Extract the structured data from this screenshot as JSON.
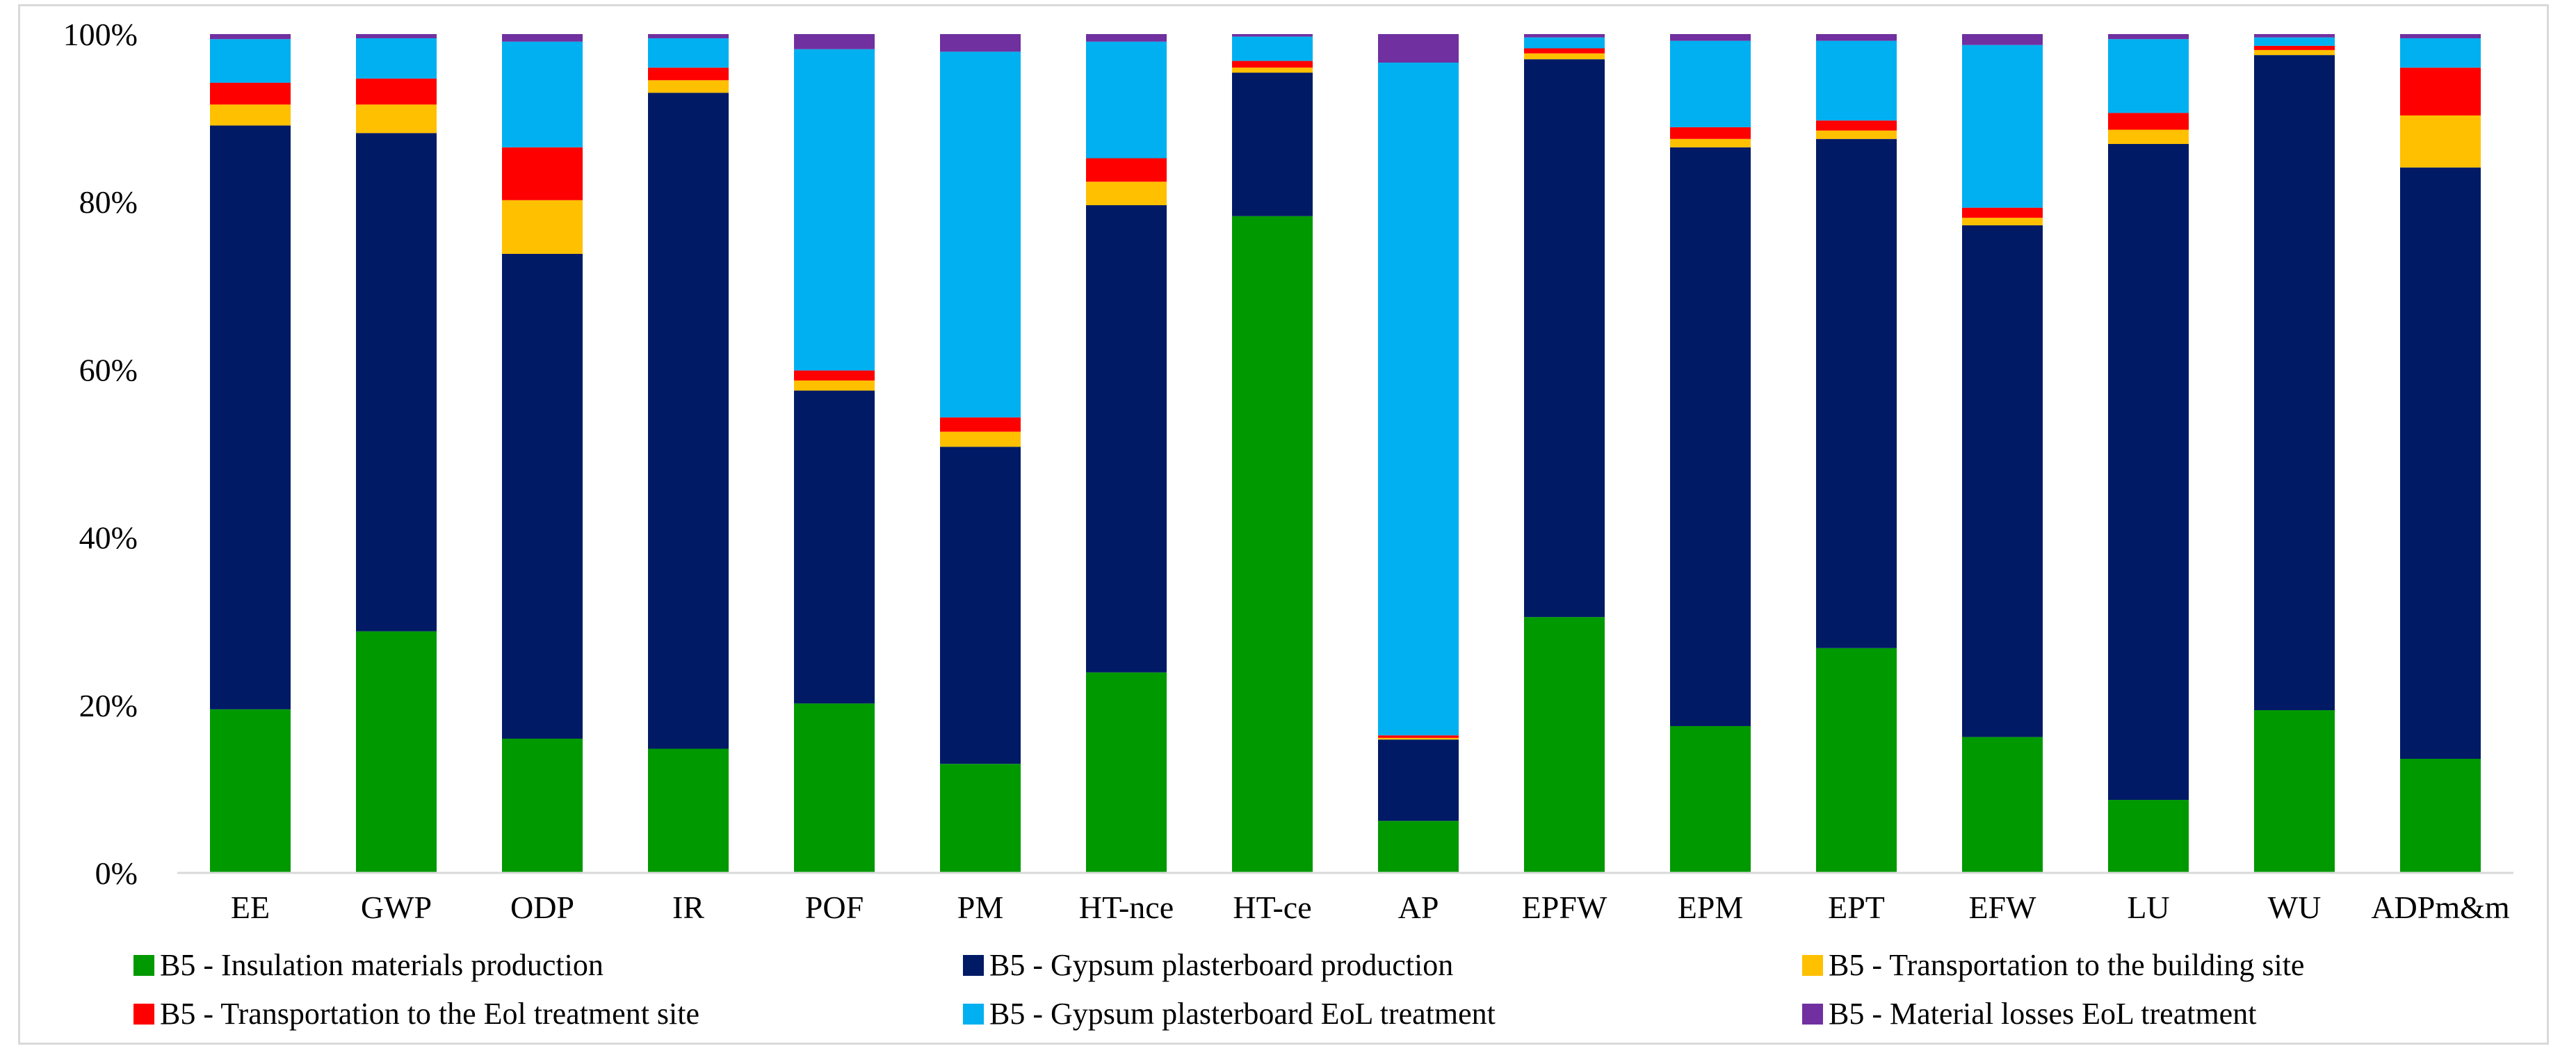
{
  "chart_data": {
    "type": "bar",
    "stacked": true,
    "categories": [
      "EE",
      "GWP",
      "ODP",
      "IR",
      "POF",
      "PM",
      "HT-nce",
      "HT-ce",
      "AP",
      "EPFW",
      "EPM",
      "EPT",
      "EFW",
      "LU",
      "WU",
      "ADPm&m"
    ],
    "ylim": [
      0,
      100
    ],
    "yticks": [
      "0%",
      "20%",
      "40%",
      "60%",
      "80%",
      "100%"
    ],
    "legend_position": "bottom",
    "grid": false,
    "series": [
      {
        "name": "B5 - Insulation materials production",
        "color": "#009900",
        "values": [
          19.5,
          28.8,
          16.0,
          14.8,
          20.2,
          13.0,
          23.9,
          78.3,
          6.2,
          30.5,
          17.5,
          26.8,
          16.2,
          8.7,
          19.4,
          13.6
        ]
      },
      {
        "name": "B5 - Gypsum plasterboard production",
        "color": "#001a66",
        "values": [
          69.6,
          59.4,
          57.8,
          78.2,
          37.3,
          37.8,
          55.7,
          17.1,
          9.7,
          66.5,
          69.0,
          60.7,
          61.0,
          78.2,
          78.1,
          70.5
        ]
      },
      {
        "name": "B5 - Transportation to the building site",
        "color": "#ffc000",
        "values": [
          2.5,
          3.4,
          6.4,
          1.5,
          1.2,
          1.8,
          2.8,
          0.6,
          0.2,
          0.7,
          1.0,
          1.0,
          0.9,
          1.7,
          0.6,
          6.2
        ]
      },
      {
        "name": "B5 - Transportation to the Eol treatment site",
        "color": "#ff0000",
        "values": [
          2.6,
          3.1,
          6.3,
          1.5,
          1.2,
          1.7,
          2.8,
          0.8,
          0.3,
          0.6,
          1.4,
          1.2,
          1.2,
          2.0,
          0.5,
          5.7
        ]
      },
      {
        "name": "B5 - Gypsum plasterboard EoL treatment",
        "color": "#00b0f0",
        "values": [
          5.2,
          4.8,
          12.6,
          3.5,
          38.3,
          43.6,
          13.9,
          2.9,
          80.2,
          1.3,
          10.3,
          9.5,
          19.4,
          8.8,
          1.0,
          3.5
        ]
      },
      {
        "name": "B5 - Material losses EoL treatment",
        "color": "#7030a0",
        "values": [
          0.6,
          0.5,
          0.9,
          0.5,
          1.8,
          2.1,
          0.9,
          0.3,
          3.4,
          0.4,
          0.8,
          0.8,
          1.3,
          0.6,
          0.4,
          0.5
        ]
      }
    ]
  }
}
